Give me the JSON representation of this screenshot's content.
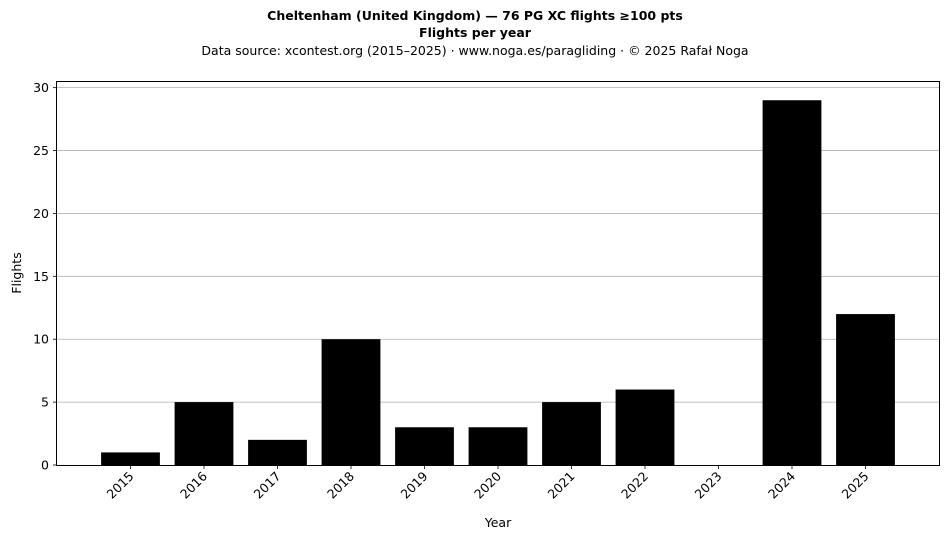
{
  "chart_data": {
    "type": "bar",
    "title": "Cheltenham (United Kingdom)  —  76 PG XC flights ≥100 pts",
    "subtitle": "Flights per year",
    "source_line": "Data source: xcontest.org (2015–2025)  ·  www.noga.es/paragliding  ·  © 2025 Rafał Noga",
    "xlabel": "Year",
    "ylabel": "Flights",
    "categories": [
      "2015",
      "2016",
      "2017",
      "2018",
      "2019",
      "2020",
      "2021",
      "2022",
      "2023",
      "2024",
      "2025"
    ],
    "values": [
      1,
      5,
      2,
      10,
      3,
      3,
      5,
      6,
      0,
      29,
      12
    ],
    "ylim": [
      0,
      30.45
    ],
    "yticks": [
      "0",
      "5",
      "10",
      "15",
      "20",
      "25",
      "30"
    ],
    "grid": "y",
    "bar_color": "#000000",
    "grid_color": "#b0b0b0"
  }
}
